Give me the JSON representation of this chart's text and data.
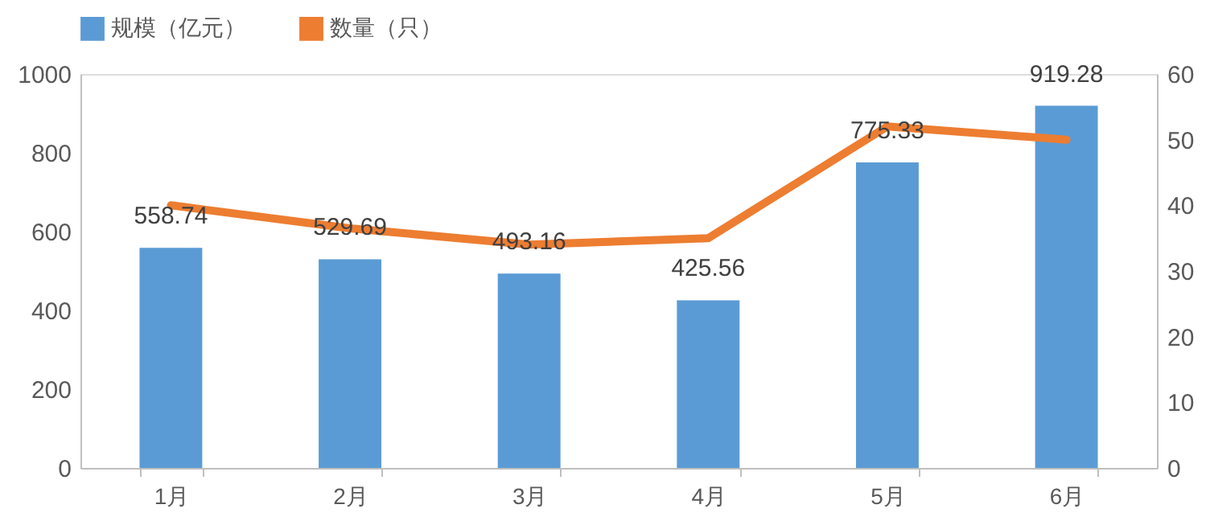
{
  "chart_data": {
    "type": "bar",
    "categories": [
      "1月",
      "2月",
      "3月",
      "4月",
      "5月",
      "6月"
    ],
    "series": [
      {
        "name": "规模（亿元）",
        "color": "#5b9bd5",
        "values": [
          558.74,
          529.69,
          493.16,
          425.56,
          775.33,
          919.28
        ],
        "data_labels": true
      },
      {
        "name": "数量（只）",
        "type": "line",
        "axis": "y2",
        "color": "#ed7d31",
        "values": [
          40,
          36.5,
          34,
          35,
          52,
          50
        ],
        "marker": "none"
      }
    ],
    "ylim": [
      0,
      1000
    ],
    "yticks": [
      0,
      200,
      400,
      600,
      800,
      1000
    ],
    "y2lim": [
      0,
      60
    ],
    "y2ticks": [
      0,
      10,
      20,
      30,
      40,
      50,
      60
    ],
    "grid": false,
    "legend": "top"
  }
}
